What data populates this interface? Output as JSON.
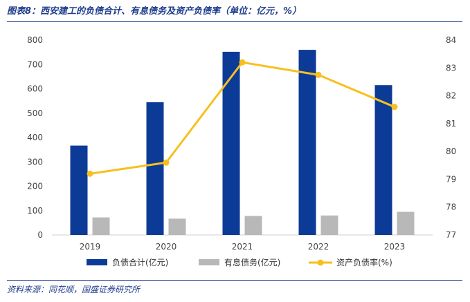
{
  "header": {
    "title": "图表8：西安建工的负债合计、有息债务及资产负债率（单位：亿元，%）"
  },
  "footer": {
    "source": "资料来源：同花顺，国盛证券研究所"
  },
  "colors": {
    "bar_total": "#0b3b96",
    "bar_interest": "#b8b8b8",
    "line_ratio": "#f7c01e",
    "accent": "#1f3d8c"
  },
  "chart_data": {
    "type": "bar",
    "title": "",
    "categories": [
      "2019",
      "2020",
      "2021",
      "2022",
      "2023"
    ],
    "series": [
      {
        "name": "负债合计(亿元)",
        "type": "bar",
        "axis": "left",
        "values": [
          367,
          545,
          752,
          760,
          615
        ]
      },
      {
        "name": "有息债务(亿元)",
        "type": "bar",
        "axis": "left",
        "values": [
          72,
          67,
          78,
          80,
          95
        ]
      },
      {
        "name": "资产负债率(%)",
        "type": "line",
        "axis": "right",
        "values": [
          79.2,
          79.6,
          83.2,
          82.75,
          81.6
        ]
      }
    ],
    "y_left": {
      "min": 0,
      "max": 800,
      "ticks": [
        0,
        100,
        200,
        300,
        400,
        500,
        600,
        700,
        800
      ]
    },
    "y_right": {
      "min": 77,
      "max": 84,
      "ticks": [
        77,
        78,
        79,
        80,
        81,
        82,
        83,
        84
      ]
    },
    "grid": false,
    "legend": "bottom"
  }
}
